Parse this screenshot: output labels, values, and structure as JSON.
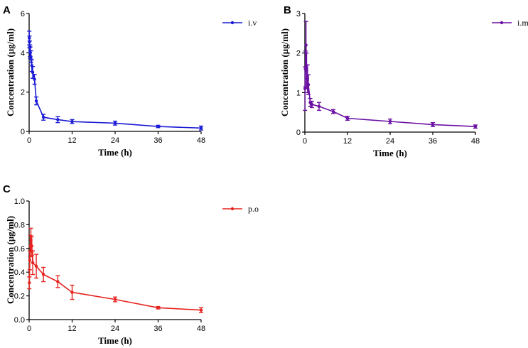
{
  "chart_data": [
    {
      "panel": "A",
      "type": "line",
      "xlabel": "Time (h)",
      "ylabel": "Concentration (µg/ml)",
      "xlim": [
        0,
        48
      ],
      "ylim": [
        0,
        6
      ],
      "xticks": [
        "0",
        "12",
        "24",
        "36",
        "48"
      ],
      "yticks": [
        "0",
        "2",
        "4",
        "6"
      ],
      "legend_position": "top-right",
      "color": "#1a1ad6",
      "series": [
        {
          "name": "i.v",
          "x": [
            0.05,
            0.1,
            0.17,
            0.25,
            0.33,
            0.5,
            0.75,
            1,
            1.5,
            2,
            4,
            8,
            12,
            24,
            36,
            48
          ],
          "y": [
            4.75,
            4.55,
            4.3,
            4.1,
            4.0,
            3.8,
            3.35,
            3.0,
            2.65,
            1.55,
            0.72,
            0.6,
            0.5,
            0.42,
            0.25,
            0.17
          ],
          "err": [
            0.35,
            0.3,
            0.3,
            0.3,
            0.3,
            0.3,
            0.3,
            0.3,
            0.25,
            0.2,
            0.15,
            0.15,
            0.1,
            0.1,
            0.06,
            0.1
          ]
        }
      ]
    },
    {
      "panel": "B",
      "type": "line",
      "xlabel": "Time (h)",
      "ylabel": "Concentration (µg/ml)",
      "xlim": [
        0,
        48
      ],
      "ylim": [
        0,
        3
      ],
      "xticks": [
        "0",
        "12",
        "24",
        "36",
        "48"
      ],
      "yticks": [
        "0",
        "1",
        "2",
        "3"
      ],
      "legend_position": "top-right",
      "color": "#6a0fa3",
      "series": [
        {
          "name": "i.m",
          "x": [
            0.05,
            0.17,
            0.33,
            0.5,
            0.75,
            1,
            1.5,
            2,
            4,
            8,
            12,
            24,
            36,
            48
          ],
          "y": [
            1.1,
            1.6,
            2.2,
            1.55,
            1.35,
            1.2,
            0.75,
            0.7,
            0.65,
            0.52,
            0.35,
            0.27,
            0.19,
            0.14
          ],
          "err": [
            0.55,
            0.45,
            0.6,
            0.45,
            0.35,
            0.25,
            0.1,
            0.08,
            0.1,
            0.05,
            0.05,
            0.06,
            0.05,
            0.04
          ]
        }
      ]
    },
    {
      "panel": "C",
      "type": "line",
      "xlabel": "Time (h)",
      "ylabel": "Concentration (µg/ml)",
      "xlim": [
        0,
        48
      ],
      "ylim": [
        0,
        1.0
      ],
      "xticks": [
        "0",
        "12",
        "24",
        "36",
        "48"
      ],
      "yticks": [
        "0.0",
        "0.2",
        "0.4",
        "0.6",
        "0.8",
        "1.0"
      ],
      "legend_position": "top-right",
      "color": "#e6231f",
      "series": [
        {
          "name": "p.o",
          "x": [
            0.05,
            0.17,
            0.33,
            0.5,
            0.75,
            1,
            2,
            4,
            8,
            12,
            24,
            36,
            48
          ],
          "y": [
            0.31,
            0.5,
            0.62,
            0.67,
            0.62,
            0.48,
            0.45,
            0.38,
            0.32,
            0.23,
            0.17,
            0.1,
            0.08
          ],
          "err": [
            0.05,
            0.08,
            0.09,
            0.1,
            0.08,
            0.1,
            0.1,
            0.06,
            0.05,
            0.06,
            0.02,
            0.01,
            0.02
          ]
        }
      ]
    }
  ]
}
